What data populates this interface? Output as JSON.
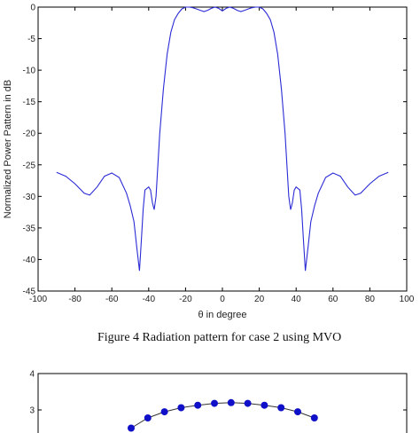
{
  "chart_data": [
    {
      "type": "line",
      "title": "",
      "xlabel": "θ in degree",
      "ylabel": "Normalized Power Pattern in dB",
      "xlim": [
        -100,
        100
      ],
      "ylim": [
        -45,
        0
      ],
      "xticks": [
        -100,
        -80,
        -60,
        -40,
        -20,
        0,
        20,
        40,
        60,
        80,
        100
      ],
      "yticks": [
        0,
        -5,
        -10,
        -15,
        -20,
        -25,
        -30,
        -35,
        -40,
        -45
      ],
      "grid": false,
      "color": "#2b2bd6",
      "series": [
        {
          "x": [
            -90,
            -85,
            -80,
            -75,
            -72,
            -68,
            -64,
            -60,
            -56,
            -52,
            -50,
            -48,
            -46.5,
            -45,
            -44,
            -43,
            -42,
            -40,
            -39,
            -38,
            -37,
            -36,
            -35,
            -34,
            -32,
            -30,
            -28,
            -26,
            -24,
            -22,
            -20,
            -18,
            -16,
            -14,
            -12,
            -10,
            -8,
            -6,
            -4,
            -2,
            0,
            2,
            4,
            6,
            8,
            10,
            12,
            14,
            16,
            18,
            20,
            22,
            24,
            26,
            28,
            30,
            32,
            34,
            35,
            36,
            37,
            38,
            39,
            40,
            42,
            43,
            44,
            45,
            46.5,
            48,
            50,
            52,
            56,
            60,
            64,
            68,
            72,
            75,
            80,
            85,
            90
          ],
          "y": [
            -26.2,
            -26.8,
            -28.0,
            -29.5,
            -29.8,
            -28.5,
            -26.8,
            -26.3,
            -27.0,
            -29.5,
            -31.5,
            -34.0,
            -38.0,
            -41.8,
            -37.0,
            -32.0,
            -29.0,
            -28.5,
            -29.0,
            -31.0,
            -32.1,
            -30.0,
            -25.0,
            -20.0,
            -13.0,
            -7.5,
            -4.0,
            -2.0,
            -1.0,
            -0.3,
            0.0,
            0.0,
            -0.1,
            -0.3,
            -0.5,
            -0.7,
            -0.5,
            -0.2,
            0.0,
            -0.2,
            -0.6,
            -0.2,
            0.0,
            -0.2,
            -0.5,
            -0.7,
            -0.5,
            -0.3,
            -0.1,
            0.0,
            0.0,
            -0.3,
            -1.0,
            -2.0,
            -4.0,
            -7.5,
            -13.0,
            -20.0,
            -25.0,
            -30.0,
            -32.1,
            -31.0,
            -29.0,
            -28.5,
            -29.0,
            -32.0,
            -37.0,
            -41.8,
            -38.0,
            -34.0,
            -31.5,
            -29.5,
            -27.0,
            -26.3,
            -26.8,
            -28.5,
            -29.8,
            -29.5,
            -28.0,
            -26.8,
            -26.2
          ]
        }
      ]
    },
    {
      "type": "scatter",
      "title": "",
      "xlabel": "",
      "ylabel": "",
      "ylim": [
        2,
        4
      ],
      "yticks": [
        4,
        3
      ],
      "grid": false,
      "marker_color": "#1010c8",
      "line_color": "#333333",
      "series": [
        {
          "x": [
            -11,
            -10,
            -9,
            -8,
            -7,
            -6,
            -5,
            -4,
            -3,
            -2,
            -1,
            0
          ],
          "y": [
            2.5,
            2.78,
            2.95,
            3.06,
            3.13,
            3.18,
            3.2,
            3.18,
            3.13,
            3.06,
            2.95,
            2.78
          ]
        }
      ],
      "xlim": [
        -12,
        1
      ]
    }
  ],
  "caption": "Figure 4 Radiation pattern for case 2 using MVO"
}
